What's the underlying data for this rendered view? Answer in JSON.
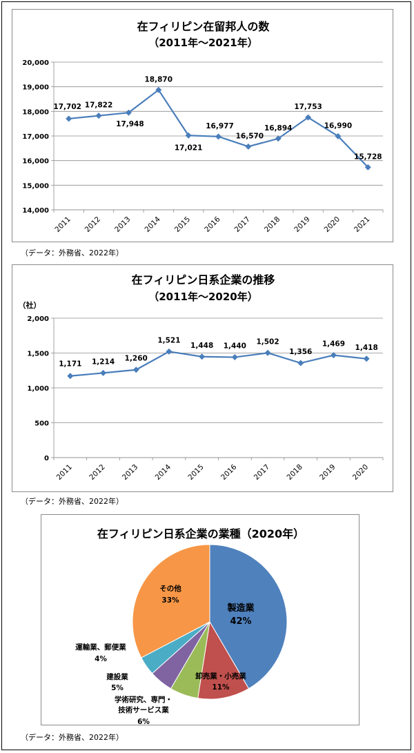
{
  "charts": [
    {
      "title_line1": "在フィリピン在留邦人の数",
      "title_line2": "（2011年～2021年）",
      "unit_label": "",
      "source": "（データ：外務省、2022年）"
    },
    {
      "title_line1": "在フィリピン日系企業の推移",
      "title_line2": "（2011年～2020年）",
      "unit_label": "（社）",
      "source": "（データ：外務省、2022年）"
    },
    {
      "title_line1": "在フィリピン日系企業の業種（2020年）",
      "source": "（データ：外務省、2022年）"
    }
  ],
  "chart_data": [
    {
      "type": "line",
      "title": "在フィリピン在留邦人の数（2011年～2021年）",
      "categories": [
        "2011",
        "2012",
        "2013",
        "2014",
        "2015",
        "2016",
        "2017",
        "2018",
        "2019",
        "2020",
        "2021"
      ],
      "values": [
        17702,
        17822,
        17948,
        18870,
        17021,
        16977,
        16570,
        16894,
        17753,
        16990,
        15728
      ],
      "value_labels": [
        "17,702",
        "17,822",
        "17,948",
        "18,870",
        "17,021",
        "16,977",
        "16,570",
        "16,894",
        "17,753",
        "16,990",
        "15,728"
      ],
      "ylim": [
        14000,
        20000
      ],
      "yticks": [
        14000,
        15000,
        16000,
        17000,
        18000,
        19000,
        20000
      ],
      "ytick_labels": [
        "14,000",
        "15,000",
        "16,000",
        "17,000",
        "18,000",
        "19,000",
        "20,000"
      ],
      "color": "#4A7EBB",
      "grid": true
    },
    {
      "type": "line",
      "title": "在フィリピン日系企業の推移（2011年～2020年）",
      "ylabel": "（社）",
      "categories": [
        "2011",
        "2012",
        "2013",
        "2014",
        "2015",
        "2016",
        "2017",
        "2018",
        "2019",
        "2020"
      ],
      "values": [
        1171,
        1214,
        1260,
        1521,
        1448,
        1440,
        1502,
        1356,
        1469,
        1418
      ],
      "value_labels": [
        "1,171",
        "1,214",
        "1,260",
        "1,521",
        "1,448",
        "1,440",
        "1,502",
        "1,356",
        "1,469",
        "1,418"
      ],
      "ylim": [
        0,
        2000
      ],
      "yticks": [
        0,
        500,
        1000,
        1500,
        2000
      ],
      "ytick_labels": [
        "0",
        "500",
        "1,000",
        "1,500",
        "2,000"
      ],
      "color": "#4A7EBB",
      "grid": true
    },
    {
      "type": "pie",
      "title": "在フィリピン日系企業の業種（2020年）",
      "slices": [
        {
          "name": "製造業",
          "value": 42,
          "label": "42%",
          "color": "#4F81BD"
        },
        {
          "name": "卸売業・小売業",
          "value": 11,
          "label": "11%",
          "color": "#C0504D"
        },
        {
          "name": "学術研究、専門・技術サービス業",
          "value": 6,
          "label": "6%",
          "color": "#9BBB59"
        },
        {
          "name": "建設業",
          "value": 5,
          "label": "5%",
          "color": "#8064A2"
        },
        {
          "name": "運輸業、郵便業",
          "value": 4,
          "label": "4%",
          "color": "#4BACC6"
        },
        {
          "name": "その他",
          "value": 33,
          "label": "33%",
          "color": "#F79646"
        }
      ]
    }
  ]
}
